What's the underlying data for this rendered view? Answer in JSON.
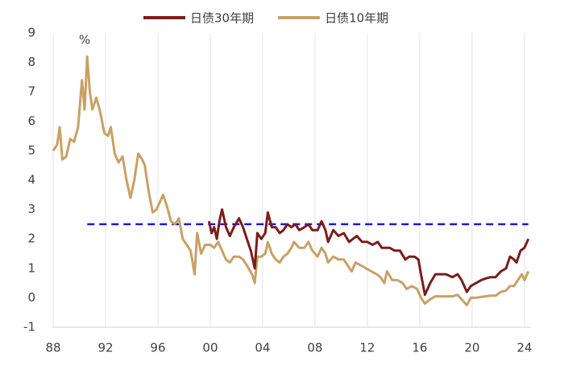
{
  "chart_data": {
    "type": "line",
    "y_label": "%",
    "series": [
      {
        "name": "日债30年期",
        "color": "#7b1c1c",
        "x": [
          1999.9,
          2000.1,
          2000.3,
          2000.5,
          2000.7,
          2000.9,
          2001.2,
          2001.5,
          2001.8,
          2002.2,
          2002.5,
          2002.8,
          2003.1,
          2003.4,
          2003.6,
          2003.9,
          2004.2,
          2004.4,
          2004.7,
          2005.0,
          2005.3,
          2005.6,
          2005.9,
          2006.2,
          2006.5,
          2006.8,
          2007.2,
          2007.5,
          2007.8,
          2008.2,
          2008.5,
          2008.8,
          2009.0,
          2009.4,
          2009.8,
          2010.2,
          2010.6,
          2010.9,
          2011.2,
          2011.6,
          2012.0,
          2012.4,
          2012.8,
          2013.1,
          2013.4,
          2013.7,
          2014.1,
          2014.5,
          2014.9,
          2015.2,
          2015.6,
          2015.9,
          2016.1,
          2016.4,
          2016.8,
          2017.2,
          2017.6,
          2018.0,
          2018.5,
          2018.9,
          2019.2,
          2019.6,
          2019.9,
          2020.3,
          2020.7,
          2021.0,
          2021.4,
          2021.8,
          2022.2,
          2022.6,
          2022.9,
          2023.2,
          2023.4,
          2023.7,
          2024.0,
          2024.3
        ],
        "values": [
          2.6,
          2.2,
          2.4,
          2.0,
          2.6,
          3.0,
          2.4,
          2.1,
          2.4,
          2.7,
          2.4,
          2.0,
          1.6,
          1.0,
          2.2,
          2.0,
          2.2,
          2.9,
          2.4,
          2.4,
          2.2,
          2.3,
          2.5,
          2.4,
          2.5,
          2.3,
          2.4,
          2.5,
          2.3,
          2.3,
          2.6,
          2.3,
          1.9,
          2.3,
          2.1,
          2.2,
          1.9,
          2.0,
          2.1,
          1.9,
          1.9,
          1.8,
          1.9,
          1.7,
          1.7,
          1.7,
          1.6,
          1.6,
          1.3,
          1.4,
          1.4,
          1.3,
          0.8,
          0.1,
          0.5,
          0.8,
          0.8,
          0.8,
          0.7,
          0.8,
          0.6,
          0.2,
          0.4,
          0.5,
          0.6,
          0.65,
          0.7,
          0.7,
          0.9,
          1.0,
          1.4,
          1.3,
          1.2,
          1.6,
          1.7,
          2.0
        ]
      },
      {
        "name": "日债10年期",
        "color": "#c8a165",
        "x": [
          1988.0,
          1988.3,
          1988.5,
          1988.7,
          1989.0,
          1989.3,
          1989.6,
          1989.9,
          1990.2,
          1990.4,
          1990.6,
          1990.8,
          1991.0,
          1991.3,
          1991.6,
          1991.9,
          1992.2,
          1992.4,
          1992.7,
          1993.0,
          1993.3,
          1993.6,
          1993.9,
          1994.2,
          1994.5,
          1994.8,
          1995.0,
          1995.3,
          1995.6,
          1995.9,
          1996.2,
          1996.4,
          1996.7,
          1997.0,
          1997.3,
          1997.6,
          1997.9,
          1998.2,
          1998.5,
          1998.8,
          1999.0,
          1999.3,
          1999.6,
          2000.0,
          2000.3,
          2000.6,
          2000.9,
          2001.2,
          2001.5,
          2001.8,
          2002.2,
          2002.5,
          2002.8,
          2003.2,
          2003.4,
          2003.6,
          2003.9,
          2004.2,
          2004.4,
          2004.7,
          2005.0,
          2005.3,
          2005.6,
          2005.9,
          2006.2,
          2006.4,
          2006.8,
          2007.2,
          2007.5,
          2007.8,
          2008.2,
          2008.5,
          2008.8,
          2009.0,
          2009.4,
          2009.8,
          2010.2,
          2010.5,
          2010.8,
          2011.1,
          2011.5,
          2011.9,
          2012.3,
          2012.7,
          2013.0,
          2013.3,
          2013.5,
          2013.9,
          2014.3,
          2014.7,
          2015.0,
          2015.4,
          2015.8,
          2016.1,
          2016.4,
          2016.8,
          2017.2,
          2017.6,
          2018.0,
          2018.5,
          2018.9,
          2019.3,
          2019.6,
          2019.9,
          2020.3,
          2020.7,
          2021.0,
          2021.4,
          2021.8,
          2022.2,
          2022.6,
          2022.9,
          2023.2,
          2023.5,
          2023.8,
          2024.0,
          2024.3
        ],
        "values": [
          5.0,
          5.2,
          5.8,
          4.7,
          4.8,
          5.4,
          5.3,
          5.8,
          7.4,
          6.4,
          8.2,
          7.0,
          6.4,
          6.8,
          6.3,
          5.6,
          5.5,
          5.8,
          4.9,
          4.6,
          4.8,
          4.0,
          3.4,
          4.0,
          4.9,
          4.7,
          4.5,
          3.6,
          2.9,
          3.0,
          3.3,
          3.5,
          3.1,
          2.6,
          2.5,
          2.7,
          2.0,
          1.8,
          1.6,
          0.8,
          2.2,
          1.5,
          1.8,
          1.8,
          1.7,
          1.9,
          1.6,
          1.3,
          1.2,
          1.4,
          1.4,
          1.3,
          1.1,
          0.8,
          0.5,
          1.4,
          1.4,
          1.5,
          1.9,
          1.5,
          1.3,
          1.2,
          1.4,
          1.5,
          1.7,
          1.9,
          1.7,
          1.7,
          1.9,
          1.6,
          1.4,
          1.7,
          1.5,
          1.2,
          1.4,
          1.3,
          1.3,
          1.1,
          0.9,
          1.2,
          1.1,
          1.0,
          0.9,
          0.8,
          0.7,
          0.5,
          0.9,
          0.6,
          0.6,
          0.5,
          0.3,
          0.4,
          0.3,
          0.0,
          -0.2,
          -0.05,
          0.05,
          0.05,
          0.05,
          0.05,
          0.1,
          -0.1,
          -0.25,
          0.0,
          0.0,
          0.03,
          0.05,
          0.07,
          0.07,
          0.2,
          0.25,
          0.4,
          0.4,
          0.6,
          0.8,
          0.6,
          0.9
        ]
      }
    ],
    "reference_line": {
      "y": 2.5,
      "x": [
        1990.6,
        2024.3
      ],
      "color": "#1a1adb"
    },
    "xlim": [
      1988,
      2024.5
    ],
    "xticks": [
      {
        "value": 1988,
        "label": "88"
      },
      {
        "value": 1992,
        "label": "92"
      },
      {
        "value": 1996,
        "label": "96"
      },
      {
        "value": 2000,
        "label": "00"
      },
      {
        "value": 2004,
        "label": "04"
      },
      {
        "value": 2008,
        "label": "08"
      },
      {
        "value": 2012,
        "label": "12"
      },
      {
        "value": 2016,
        "label": "16"
      },
      {
        "value": 2020,
        "label": "20"
      },
      {
        "value": 2024,
        "label": "24"
      }
    ],
    "ylim": [
      -1,
      9
    ],
    "yticks": [
      -1,
      0,
      1,
      2,
      3,
      4,
      5,
      6,
      7,
      8,
      9
    ],
    "grid": true,
    "legend": "top"
  }
}
